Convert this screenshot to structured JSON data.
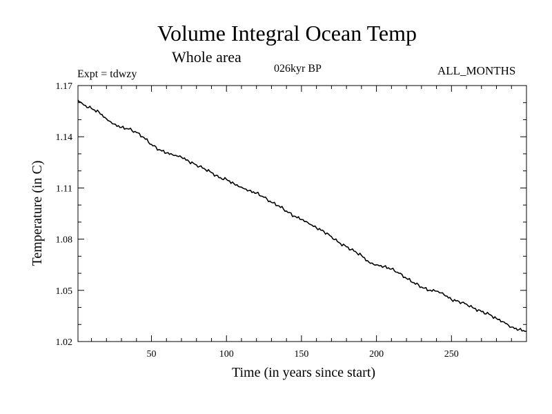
{
  "chart_data": {
    "type": "line",
    "title": "Volume Integral Ocean Temp",
    "subtitle": "Whole area",
    "annotations": {
      "left": "Expt = tdwzy",
      "center": "026kyr BP",
      "right": "ALL_MONTHS"
    },
    "xlabel": "Time (in years since start)",
    "ylabel": "Temperature (in C)",
    "xlim": [
      1,
      300
    ],
    "ylim": [
      1.02,
      1.17
    ],
    "xticks": [
      50,
      100,
      150,
      200,
      250
    ],
    "yticks": [
      1.02,
      1.05,
      1.08,
      1.11,
      1.14,
      1.17
    ],
    "ytick_labels": [
      "1.02",
      "1.05",
      "1.08",
      "1.11",
      "1.14",
      "1.17"
    ],
    "grid": false,
    "series": [
      {
        "x": [
          1,
          5,
          10,
          15,
          20,
          25,
          30,
          35,
          40,
          45,
          50,
          55,
          60,
          65,
          70,
          75,
          80,
          85,
          90,
          95,
          100,
          105,
          110,
          115,
          120,
          125,
          130,
          135,
          140,
          145,
          150,
          155,
          160,
          165,
          170,
          175,
          180,
          185,
          190,
          195,
          200,
          205,
          210,
          215,
          220,
          225,
          230,
          235,
          240,
          245,
          250,
          255,
          260,
          265,
          270,
          275,
          280,
          285,
          290,
          295,
          300
        ],
        "values": [
          1.1615,
          1.1585,
          1.1565,
          1.1545,
          1.1505,
          1.1475,
          1.1455,
          1.1445,
          1.1425,
          1.1395,
          1.1355,
          1.1325,
          1.1305,
          1.129,
          1.128,
          1.1255,
          1.1235,
          1.1215,
          1.119,
          1.116,
          1.115,
          1.1125,
          1.1105,
          1.1085,
          1.107,
          1.1045,
          1.1015,
          1.0995,
          1.0965,
          1.0935,
          1.0915,
          1.089,
          1.0865,
          1.0845,
          1.0815,
          1.078,
          1.0755,
          1.073,
          1.0705,
          1.0665,
          1.065,
          1.064,
          1.0625,
          1.06,
          1.057,
          1.0545,
          1.052,
          1.05,
          1.0495,
          1.0475,
          1.0445,
          1.0435,
          1.042,
          1.0395,
          1.0375,
          1.036,
          1.0335,
          1.0315,
          1.0285,
          1.027,
          1.026
        ]
      }
    ]
  }
}
